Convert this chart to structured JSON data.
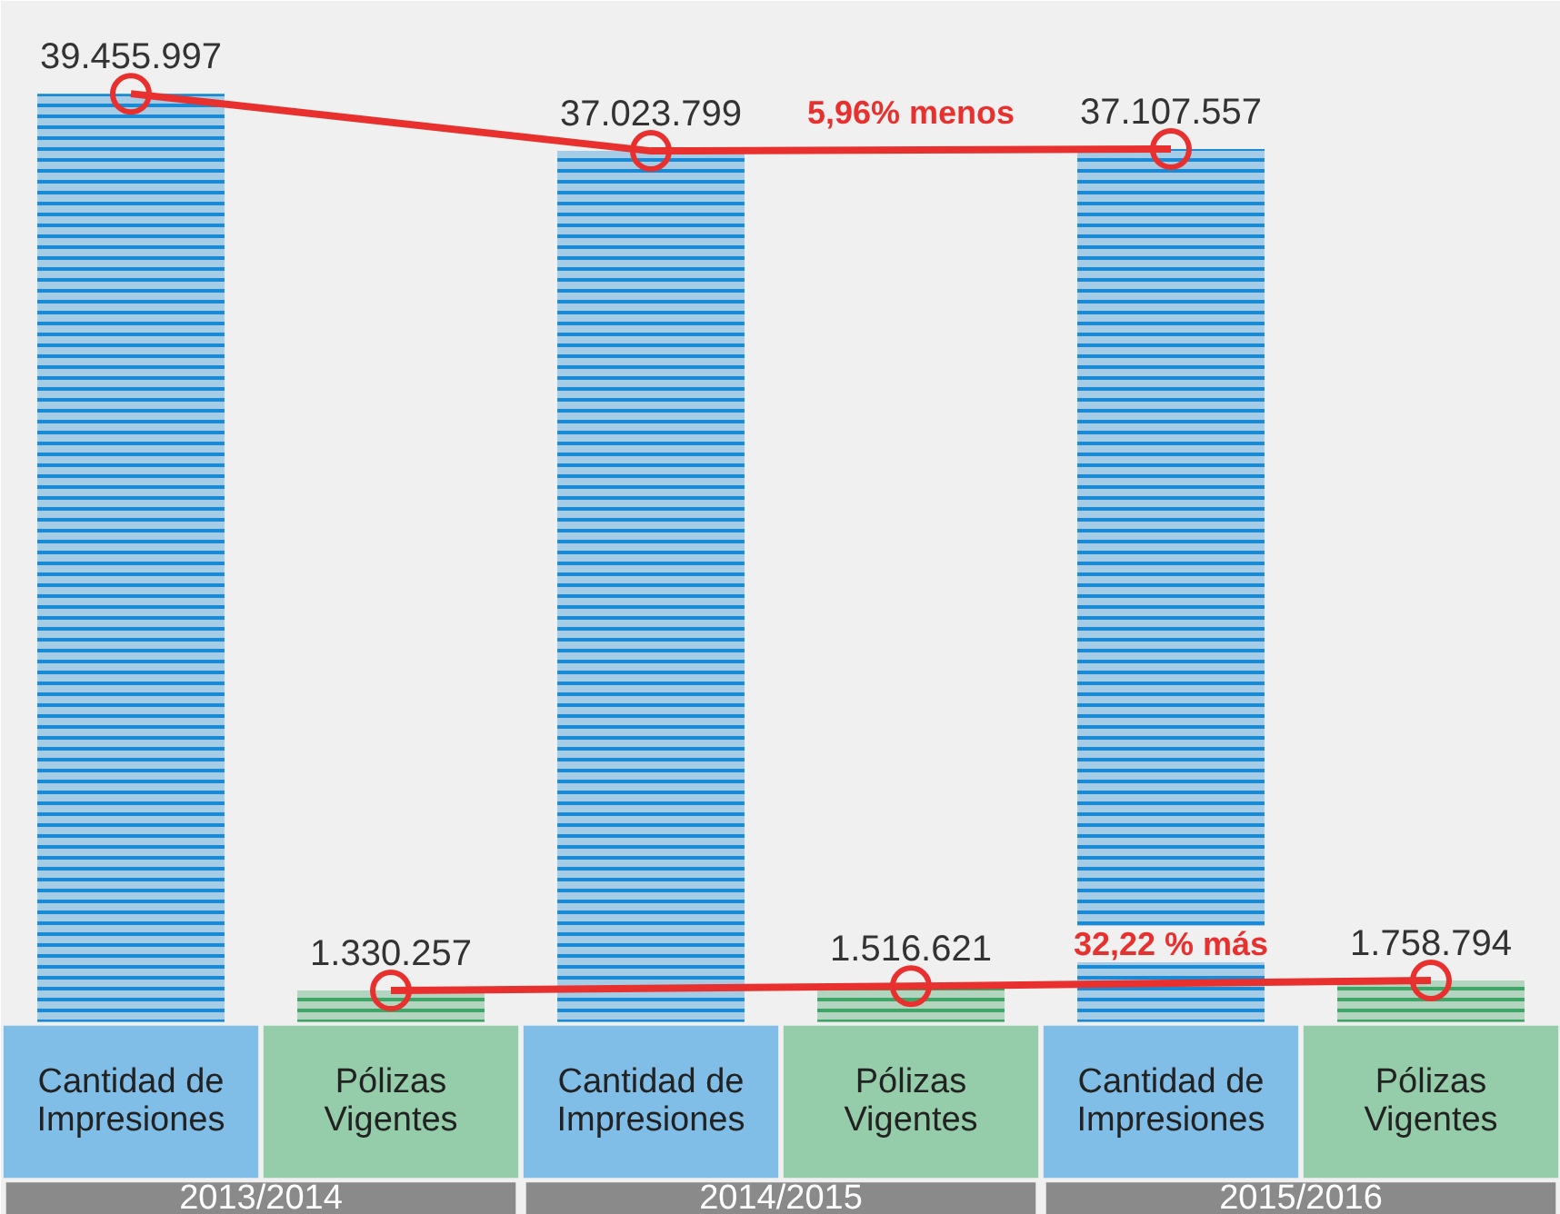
{
  "chart_data": {
    "type": "bar",
    "categories": [
      "Cantidad de Impresiones",
      "Pólizas Vigentes",
      "Cantidad de Impresiones",
      "Pólizas Vigentes",
      "Cantidad de Impresiones",
      "Pólizas Vigentes"
    ],
    "values": [
      39455997,
      1330257,
      37023799,
      1516621,
      37107557,
      1758794
    ],
    "colors": [
      "#1a8ad4",
      "#3fa466",
      "#1a8ad4",
      "#3fa466",
      "#1a8ad4",
      "#3fa466"
    ],
    "value_labels": [
      "39.455.997",
      "1.330.257",
      "37.023.799",
      "1.516.621",
      "37.107.557",
      "1.758.794"
    ],
    "series": [
      {
        "type": "line",
        "color": "#e8312f",
        "values": [
          39455997,
          null,
          37023799,
          null,
          37107557,
          null
        ]
      },
      {
        "type": "line",
        "color": "#e8312f",
        "values": [
          null,
          1330257,
          null,
          1516621,
          null,
          1758794
        ]
      }
    ],
    "marker": "circle",
    "grid": false,
    "tick_labels": false,
    "annotations": [
      "5,96% menos",
      "32,22 % más",
      "2013/2014",
      "2014/2015",
      "2015/2016"
    ]
  }
}
